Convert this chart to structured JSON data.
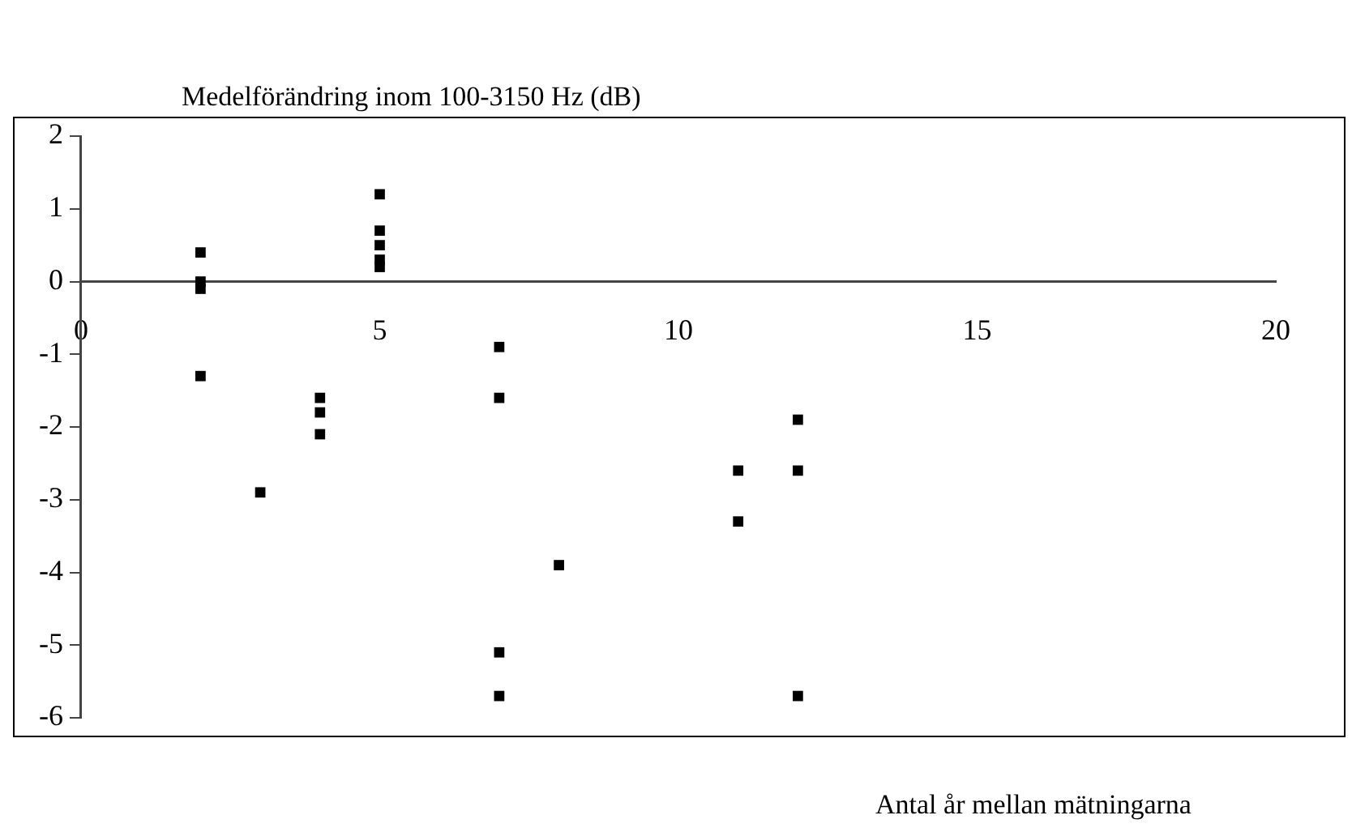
{
  "chart_data": {
    "type": "scatter",
    "title": "Medelförändring inom 100-3150 Hz (dB)",
    "xlabel": "Antal år mellan mätningarna",
    "xlim": [
      0,
      20
    ],
    "xticks": [
      0,
      5,
      10,
      15,
      20
    ],
    "ylim": [
      -6,
      2
    ],
    "yticks": [
      -6,
      -5,
      -4,
      -3,
      -2,
      -1,
      0,
      1,
      2
    ],
    "grid": false,
    "legend": false,
    "marker": "square",
    "series": [
      {
        "color": "#000000",
        "x": [
          2,
          2,
          2,
          2,
          3,
          4,
          4,
          4,
          5,
          5,
          5,
          5,
          5,
          7,
          7,
          7,
          7,
          8,
          11,
          11,
          12,
          12,
          12
        ],
        "values": [
          0.4,
          0,
          -0.1,
          -1.3,
          -2.9,
          -1.6,
          -1.8,
          -2.1,
          1.2,
          0.7,
          0.5,
          0.3,
          0.2,
          -0.9,
          -1.6,
          -5.1,
          -5.7,
          -3.9,
          -2.6,
          -3.3,
          -1.9,
          -2.6,
          -5.7
        ]
      }
    ]
  }
}
